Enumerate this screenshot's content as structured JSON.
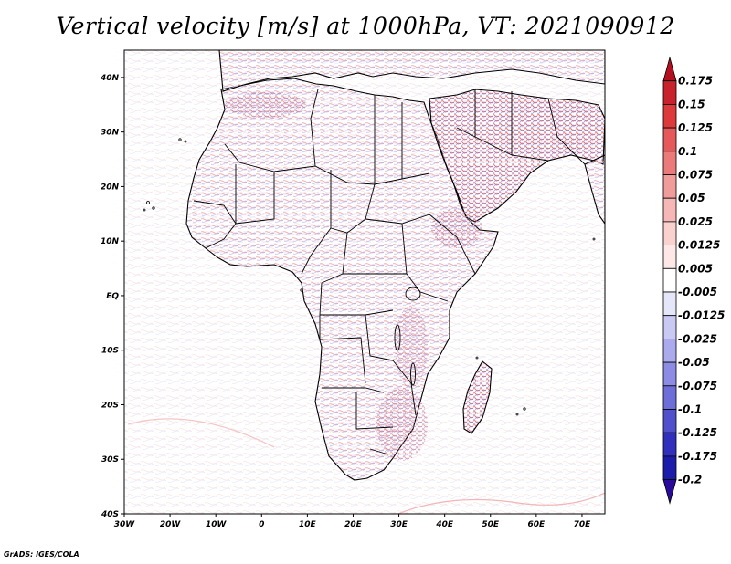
{
  "title": "Vertical velocity [m/s] at 1000hPa, VT: 2021090912",
  "credit": "GrADS: IGES/COLA",
  "map": {
    "lon_range": [
      -30,
      75
    ],
    "lat_range": [
      -40,
      45
    ],
    "lon_ticks": [
      {
        "value": -30,
        "label": "30W"
      },
      {
        "value": -20,
        "label": "20W"
      },
      {
        "value": -10,
        "label": "10W"
      },
      {
        "value": 0,
        "label": "0"
      },
      {
        "value": 10,
        "label": "10E"
      },
      {
        "value": 20,
        "label": "20E"
      },
      {
        "value": 30,
        "label": "30E"
      },
      {
        "value": 40,
        "label": "40E"
      },
      {
        "value": 50,
        "label": "50E"
      },
      {
        "value": 60,
        "label": "60E"
      },
      {
        "value": 70,
        "label": "70E"
      }
    ],
    "lat_ticks": [
      {
        "value": 40,
        "label": "40N"
      },
      {
        "value": 30,
        "label": "30N"
      },
      {
        "value": 20,
        "label": "20N"
      },
      {
        "value": 10,
        "label": "10N"
      },
      {
        "value": 0,
        "label": "EQ"
      },
      {
        "value": -10,
        "label": "10S"
      },
      {
        "value": -20,
        "label": "20S"
      },
      {
        "value": -30,
        "label": "30S"
      },
      {
        "value": -40,
        "label": "40S"
      }
    ]
  },
  "colorbar": {
    "labels": [
      "0.175",
      "0.15",
      "0.125",
      "0.1",
      "0.075",
      "0.05",
      "0.025",
      "0.0125",
      "0.005",
      "-0.005",
      "-0.0125",
      "-0.025",
      "-0.05",
      "-0.075",
      "-0.1",
      "-0.125",
      "-0.175",
      "-0.2"
    ],
    "colors": [
      "#b40f20",
      "#c8222c",
      "#dd3b3b",
      "#e5595a",
      "#eb7b7a",
      "#f09c9b",
      "#f5b8b6",
      "#f9d2d0",
      "#fde8e7",
      "#ffffff",
      "#e6e6fb",
      "#c9c9f4",
      "#aaaaed",
      "#8c8ce4",
      "#6e6ed9",
      "#5050cd",
      "#3030bd",
      "#1c1caa",
      "#2a0a9a"
    ]
  }
}
